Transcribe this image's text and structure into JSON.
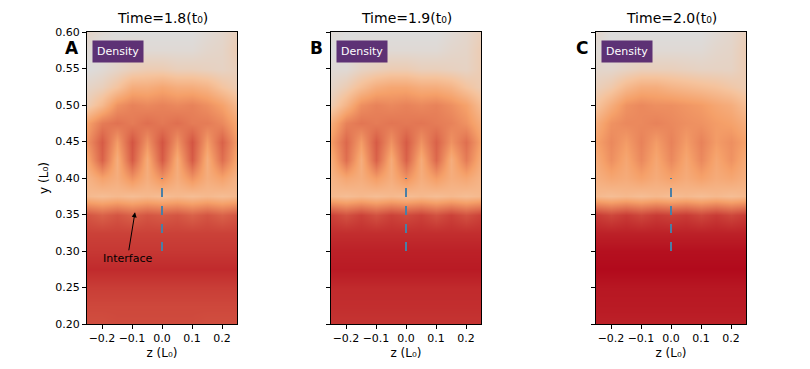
{
  "chart_data": [
    {
      "type": "heatmap",
      "title": "Time=1.8(t₀)",
      "label": "A",
      "xlabel": "z (L₀)",
      "ylabel": "y (L₀)",
      "x": [
        -0.25,
        -0.2,
        -0.15,
        -0.1,
        -0.05,
        0,
        0.05,
        0.1,
        0.15,
        0.2,
        0.25
      ],
      "y": [
        0.2,
        0.225,
        0.25,
        0.275,
        0.3,
        0.325,
        0.35,
        0.375,
        0.4,
        0.425,
        0.45,
        0.475,
        0.5,
        0.525,
        0.55,
        0.575,
        0.6
      ],
      "cells": [
        [
          0.76,
          0.76,
          0.77,
          0.77,
          0.77,
          0.77,
          0.77,
          0.77,
          0.76,
          0.76,
          0.76
        ],
        [
          0.78,
          0.78,
          0.78,
          0.78,
          0.78,
          0.78,
          0.78,
          0.78,
          0.78,
          0.78,
          0.78
        ],
        [
          0.81,
          0.81,
          0.81,
          0.81,
          0.81,
          0.81,
          0.81,
          0.81,
          0.81,
          0.81,
          0.81
        ],
        [
          0.87,
          0.87,
          0.87,
          0.87,
          0.87,
          0.87,
          0.87,
          0.87,
          0.87,
          0.87,
          0.87
        ],
        [
          0.83,
          0.83,
          0.83,
          0.83,
          0.83,
          0.83,
          0.83,
          0.83,
          0.83,
          0.83,
          0.83
        ],
        [
          0.8,
          0.8,
          0.8,
          0.8,
          0.8,
          0.8,
          0.8,
          0.8,
          0.8,
          0.8,
          0.8
        ],
        [
          0.74,
          0.7,
          0.74,
          0.7,
          0.74,
          0.72,
          0.74,
          0.7,
          0.74,
          0.7,
          0.74
        ],
        [
          0.4,
          0.38,
          0.4,
          0.38,
          0.4,
          0.38,
          0.4,
          0.38,
          0.4,
          0.38,
          0.4
        ],
        [
          0.42,
          0.5,
          0.45,
          0.55,
          0.45,
          0.55,
          0.45,
          0.55,
          0.45,
          0.5,
          0.42
        ],
        [
          0.48,
          0.7,
          0.45,
          0.72,
          0.46,
          0.72,
          0.46,
          0.72,
          0.45,
          0.66,
          0.48
        ],
        [
          0.55,
          0.72,
          0.52,
          0.74,
          0.55,
          0.74,
          0.55,
          0.74,
          0.52,
          0.7,
          0.52
        ],
        [
          0.5,
          0.62,
          0.65,
          0.62,
          0.66,
          0.63,
          0.66,
          0.62,
          0.62,
          0.58,
          0.48
        ],
        [
          0.3,
          0.4,
          0.55,
          0.6,
          0.58,
          0.6,
          0.58,
          0.6,
          0.56,
          0.5,
          0.4
        ],
        [
          0.25,
          0.28,
          0.35,
          0.45,
          0.45,
          0.48,
          0.45,
          0.45,
          0.42,
          0.35,
          0.3
        ],
        [
          0.2,
          0.22,
          0.25,
          0.28,
          0.3,
          0.3,
          0.28,
          0.28,
          0.27,
          0.26,
          0.28
        ],
        [
          0.22,
          0.2,
          0.22,
          0.24,
          0.22,
          0.22,
          0.22,
          0.22,
          0.24,
          0.25,
          0.3
        ],
        [
          0.25,
          0.22,
          0.2,
          0.2,
          0.2,
          0.2,
          0.2,
          0.2,
          0.22,
          0.24,
          0.28
        ]
      ],
      "xlim": [
        -0.25,
        0.25
      ],
      "ylim": [
        0.2,
        0.6
      ],
      "xticks": [
        {
          "value": -0.2,
          "label": "−0.2"
        },
        {
          "value": -0.1,
          "label": "−0.1"
        },
        {
          "value": 0,
          "label": "0.0"
        },
        {
          "value": 0.1,
          "label": "0.1"
        },
        {
          "value": 0.2,
          "label": "0.2"
        }
      ],
      "yticks": [
        {
          "value": 0.2,
          "label": "0.20"
        },
        {
          "value": 0.25,
          "label": "0.25"
        },
        {
          "value": 0.3,
          "label": "0.30"
        },
        {
          "value": 0.35,
          "label": "0.35"
        },
        {
          "value": 0.4,
          "label": "0.40"
        },
        {
          "value": 0.45,
          "label": "0.45"
        },
        {
          "value": 0.5,
          "label": "0.50"
        },
        {
          "value": 0.55,
          "label": "0.55"
        },
        {
          "value": 0.6,
          "label": "0.60"
        }
      ],
      "series": [
        {
          "type": "line",
          "x": [
            0,
            0
          ],
          "values": [
            0.3,
            0.4
          ],
          "color": "#4a7fa5",
          "line_style": "dash"
        }
      ],
      "annotations": [
        {
          "text": "Density",
          "x": -0.235,
          "y": 0.573
        },
        {
          "text": "Interface",
          "x": -0.09,
          "y": 0.353,
          "text_x": -0.115,
          "text_y": 0.29
        }
      ]
    },
    {
      "type": "heatmap",
      "title": "Time=1.9(t₀)",
      "label": "B",
      "xlabel": "z (L₀)",
      "tick_labels": "x",
      "x": [
        -0.25,
        -0.2,
        -0.15,
        -0.1,
        -0.05,
        0,
        0.05,
        0.1,
        0.15,
        0.2,
        0.25
      ],
      "y": [
        0.2,
        0.225,
        0.25,
        0.275,
        0.3,
        0.325,
        0.35,
        0.375,
        0.4,
        0.425,
        0.45,
        0.475,
        0.5,
        0.525,
        0.55,
        0.575,
        0.6
      ],
      "cells": [
        [
          0.84,
          0.84,
          0.84,
          0.84,
          0.84,
          0.84,
          0.84,
          0.84,
          0.84,
          0.84,
          0.84
        ],
        [
          0.86,
          0.86,
          0.86,
          0.86,
          0.86,
          0.86,
          0.86,
          0.86,
          0.86,
          0.86,
          0.86
        ],
        [
          0.87,
          0.87,
          0.87,
          0.87,
          0.87,
          0.87,
          0.87,
          0.87,
          0.87,
          0.87,
          0.87
        ],
        [
          0.92,
          0.92,
          0.92,
          0.92,
          0.92,
          0.92,
          0.92,
          0.92,
          0.92,
          0.92,
          0.92
        ],
        [
          0.9,
          0.9,
          0.9,
          0.9,
          0.9,
          0.9,
          0.9,
          0.9,
          0.9,
          0.9,
          0.9
        ],
        [
          0.86,
          0.86,
          0.86,
          0.86,
          0.86,
          0.86,
          0.86,
          0.86,
          0.86,
          0.86,
          0.86
        ],
        [
          0.8,
          0.75,
          0.8,
          0.75,
          0.8,
          0.77,
          0.8,
          0.75,
          0.8,
          0.75,
          0.8
        ],
        [
          0.4,
          0.38,
          0.4,
          0.38,
          0.4,
          0.38,
          0.4,
          0.38,
          0.4,
          0.38,
          0.4
        ],
        [
          0.42,
          0.48,
          0.45,
          0.52,
          0.45,
          0.55,
          0.45,
          0.52,
          0.45,
          0.48,
          0.42
        ],
        [
          0.45,
          0.66,
          0.45,
          0.7,
          0.46,
          0.7,
          0.46,
          0.68,
          0.45,
          0.62,
          0.45
        ],
        [
          0.52,
          0.68,
          0.52,
          0.72,
          0.55,
          0.72,
          0.55,
          0.7,
          0.55,
          0.66,
          0.5
        ],
        [
          0.45,
          0.6,
          0.64,
          0.62,
          0.64,
          0.63,
          0.64,
          0.62,
          0.6,
          0.55,
          0.45
        ],
        [
          0.3,
          0.42,
          0.56,
          0.6,
          0.58,
          0.6,
          0.58,
          0.6,
          0.56,
          0.5,
          0.38
        ],
        [
          0.25,
          0.3,
          0.38,
          0.45,
          0.48,
          0.48,
          0.45,
          0.45,
          0.42,
          0.35,
          0.3
        ],
        [
          0.22,
          0.22,
          0.26,
          0.28,
          0.3,
          0.3,
          0.28,
          0.28,
          0.27,
          0.26,
          0.3
        ],
        [
          0.2,
          0.2,
          0.22,
          0.22,
          0.22,
          0.22,
          0.22,
          0.22,
          0.24,
          0.25,
          0.3
        ],
        [
          0.22,
          0.2,
          0.2,
          0.2,
          0.2,
          0.2,
          0.2,
          0.2,
          0.22,
          0.24,
          0.28
        ]
      ],
      "xlim": [
        -0.25,
        0.25
      ],
      "ylim": [
        0.2,
        0.6
      ],
      "xticks": [
        {
          "value": -0.2,
          "label": "−0.2"
        },
        {
          "value": -0.1,
          "label": "−0.1"
        },
        {
          "value": 0,
          "label": "0.0"
        },
        {
          "value": 0.1,
          "label": "0.1"
        },
        {
          "value": 0.2,
          "label": "0.2"
        }
      ],
      "yticks": [
        0.2,
        0.25,
        0.3,
        0.35,
        0.4,
        0.45,
        0.5,
        0.55,
        0.6
      ],
      "series": [
        {
          "type": "line",
          "x": [
            0,
            0
          ],
          "values": [
            0.3,
            0.4
          ],
          "color": "#4a7fa5",
          "line_style": "dash"
        }
      ],
      "annotations": [
        {
          "text": "Density",
          "x": -0.235,
          "y": 0.573
        }
      ]
    },
    {
      "type": "heatmap",
      "title": "Time=2.0(t₀)",
      "label": "C",
      "xlabel": "z (L₀)",
      "tick_labels": "x",
      "x": [
        -0.25,
        -0.2,
        -0.15,
        -0.1,
        -0.05,
        0,
        0.05,
        0.1,
        0.15,
        0.2,
        0.25
      ],
      "y": [
        0.2,
        0.225,
        0.25,
        0.275,
        0.3,
        0.325,
        0.35,
        0.375,
        0.4,
        0.425,
        0.45,
        0.475,
        0.5,
        0.525,
        0.55,
        0.575,
        0.6
      ],
      "cells": [
        [
          0.9,
          0.9,
          0.9,
          0.9,
          0.9,
          0.9,
          0.9,
          0.9,
          0.9,
          0.9,
          0.9
        ],
        [
          0.92,
          0.92,
          0.92,
          0.92,
          0.92,
          0.92,
          0.92,
          0.92,
          0.92,
          0.92,
          0.92
        ],
        [
          0.93,
          0.93,
          0.93,
          0.93,
          0.93,
          0.93,
          0.93,
          0.93,
          0.93,
          0.93,
          0.93
        ],
        [
          0.97,
          0.97,
          0.97,
          0.97,
          0.97,
          0.97,
          0.97,
          0.97,
          0.97,
          0.97,
          0.97
        ],
        [
          0.95,
          0.95,
          0.95,
          0.95,
          0.95,
          0.95,
          0.95,
          0.95,
          0.95,
          0.95,
          0.95
        ],
        [
          0.9,
          0.9,
          0.9,
          0.9,
          0.9,
          0.9,
          0.9,
          0.9,
          0.9,
          0.9,
          0.9
        ],
        [
          0.82,
          0.78,
          0.82,
          0.78,
          0.82,
          0.8,
          0.82,
          0.78,
          0.82,
          0.78,
          0.82
        ],
        [
          0.4,
          0.38,
          0.4,
          0.38,
          0.4,
          0.38,
          0.4,
          0.38,
          0.4,
          0.38,
          0.4
        ],
        [
          0.44,
          0.48,
          0.46,
          0.5,
          0.46,
          0.5,
          0.46,
          0.5,
          0.46,
          0.48,
          0.44
        ],
        [
          0.46,
          0.56,
          0.48,
          0.58,
          0.48,
          0.58,
          0.48,
          0.58,
          0.48,
          0.55,
          0.46
        ],
        [
          0.5,
          0.58,
          0.52,
          0.6,
          0.52,
          0.6,
          0.52,
          0.6,
          0.52,
          0.56,
          0.5
        ],
        [
          0.45,
          0.55,
          0.58,
          0.58,
          0.6,
          0.58,
          0.56,
          0.55,
          0.52,
          0.5,
          0.45
        ],
        [
          0.35,
          0.45,
          0.55,
          0.58,
          0.56,
          0.56,
          0.54,
          0.52,
          0.48,
          0.45,
          0.38
        ],
        [
          0.28,
          0.32,
          0.4,
          0.45,
          0.45,
          0.42,
          0.4,
          0.38,
          0.36,
          0.33,
          0.3
        ],
        [
          0.24,
          0.24,
          0.26,
          0.28,
          0.28,
          0.28,
          0.27,
          0.26,
          0.26,
          0.26,
          0.3
        ],
        [
          0.22,
          0.2,
          0.22,
          0.22,
          0.22,
          0.22,
          0.22,
          0.22,
          0.24,
          0.25,
          0.3
        ],
        [
          0.24,
          0.2,
          0.2,
          0.2,
          0.2,
          0.2,
          0.2,
          0.2,
          0.22,
          0.24,
          0.28
        ]
      ],
      "xlim": [
        -0.25,
        0.25
      ],
      "ylim": [
        0.2,
        0.6
      ],
      "xticks": [
        {
          "value": -0.2,
          "label": "−0.2"
        },
        {
          "value": -0.1,
          "label": "−0.1"
        },
        {
          "value": 0,
          "label": "0.0"
        },
        {
          "value": 0.1,
          "label": "0.1"
        },
        {
          "value": 0.2,
          "label": "0.2"
        }
      ],
      "yticks": [
        0.2,
        0.25,
        0.3,
        0.35,
        0.4,
        0.45,
        0.5,
        0.55,
        0.6
      ],
      "series": [
        {
          "type": "line",
          "x": [
            0,
            0
          ],
          "values": [
            0.3,
            0.4
          ],
          "color": "#4a7fa5",
          "line_style": "dash"
        }
      ],
      "annotations": [
        {
          "text": "Density",
          "x": -0.235,
          "y": 0.573
        }
      ]
    }
  ]
}
